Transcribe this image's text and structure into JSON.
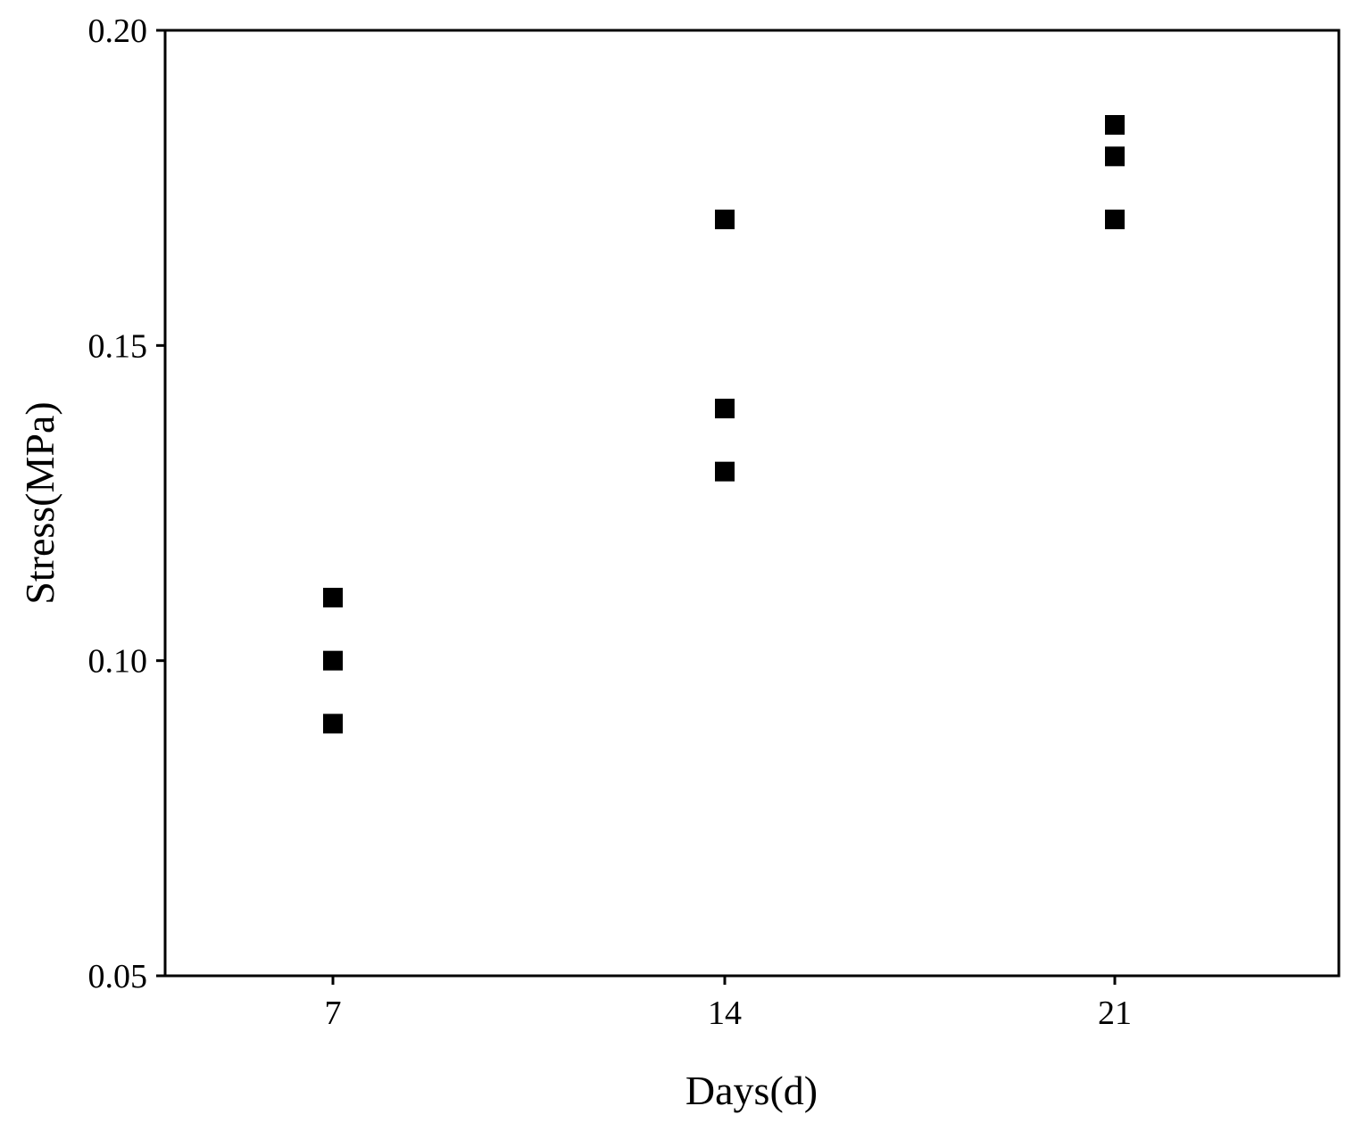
{
  "chart_data": {
    "type": "scatter",
    "title": "",
    "xlabel": "Days(d)",
    "ylabel": "Stress(MPa)",
    "ylim": [
      0.05,
      0.2
    ],
    "y_ticks": [
      "0.05",
      "0.10",
      "0.15",
      "0.20"
    ],
    "x_ticks": [
      "7",
      "14",
      "21"
    ],
    "grid": false,
    "legend": "none",
    "marker": "square",
    "marker_color": "#000000",
    "series": [
      {
        "points": [
          {
            "x": 7,
            "y": 0.11
          },
          {
            "x": 7,
            "y": 0.1
          },
          {
            "x": 7,
            "y": 0.09
          },
          {
            "x": 14,
            "y": 0.17
          },
          {
            "x": 14,
            "y": 0.14
          },
          {
            "x": 14,
            "y": 0.13
          },
          {
            "x": 21,
            "y": 0.185
          },
          {
            "x": 21,
            "y": 0.18
          },
          {
            "x": 21,
            "y": 0.17
          }
        ]
      }
    ]
  }
}
